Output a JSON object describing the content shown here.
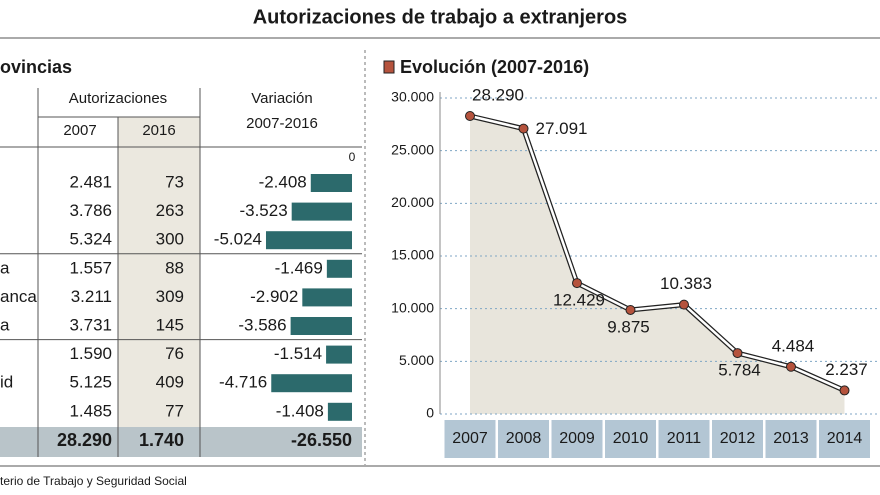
{
  "title": "Autorizaciones de trabajo a extranjeros",
  "table": {
    "title": "ovincias",
    "header_group": "Autorizaciones",
    "col_2007": "2007",
    "col_2016": "2016",
    "variation_title": "Variación",
    "variation_period": "2007-2016",
    "variation_zero": 0,
    "rows": [
      {
        "label": null,
        "v2007": "2.481",
        "v2016": "73",
        "variation": -2408,
        "variation_label": "-2.408"
      },
      {
        "label": null,
        "v2007": "3.786",
        "v2016": "263",
        "variation": -3523,
        "variation_label": "-3.523"
      },
      {
        "label": null,
        "v2007": "5.324",
        "v2016": "300",
        "variation": -5024,
        "variation_label": "-5.024"
      },
      {
        "label": "a",
        "v2007": "1.557",
        "v2016": "88",
        "variation": -1469,
        "variation_label": "-1.469"
      },
      {
        "label": "anca",
        "v2007": "3.211",
        "v2016": "309",
        "variation": -2902,
        "variation_label": "-2.902"
      },
      {
        "label": "a",
        "v2007": "3.731",
        "v2016": "145",
        "variation": -3586,
        "variation_label": "-3.586"
      },
      {
        "label": null,
        "v2007": "1.590",
        "v2016": "76",
        "variation": -1514,
        "variation_label": "-1.514"
      },
      {
        "label": "id",
        "v2007": "5.125",
        "v2016": "409",
        "variation": -4716,
        "variation_label": "-4.716"
      },
      {
        "label": null,
        "v2007": "1.485",
        "v2016": "77",
        "variation": -1408,
        "variation_label": "-1.408"
      }
    ],
    "total": {
      "v2007": "28.290",
      "v2016": "1.740",
      "variation": "-26.550"
    }
  },
  "chart_data": {
    "type": "line",
    "title": "Evolución (2007-2016)",
    "categories": [
      "2007",
      "2008",
      "2009",
      "2010",
      "2011",
      "2012",
      "2013",
      "2014"
    ],
    "values": [
      28290,
      27091,
      12429,
      9875,
      10383,
      5784,
      4484,
      2237
    ],
    "value_labels": [
      "28.290",
      "27.091",
      "12.429",
      "9.875",
      "10.383",
      "5.784",
      "4.484",
      "2.237"
    ],
    "ylim": [
      0,
      30000
    ],
    "yticks": [
      0,
      {
        "value": 5000,
        "label": "5.000"
      },
      {
        "value": 10000,
        "label": "10.000"
      },
      {
        "value": 15000,
        "label": "15.000"
      },
      {
        "value": 20000,
        "label": "20.000"
      },
      {
        "value": 25000,
        "label": "25.000"
      },
      {
        "value": 30000,
        "label": "30.000"
      }
    ],
    "grid": true,
    "color": "#b5533d"
  },
  "source": "terio de Trabajo y Seguridad Social"
}
